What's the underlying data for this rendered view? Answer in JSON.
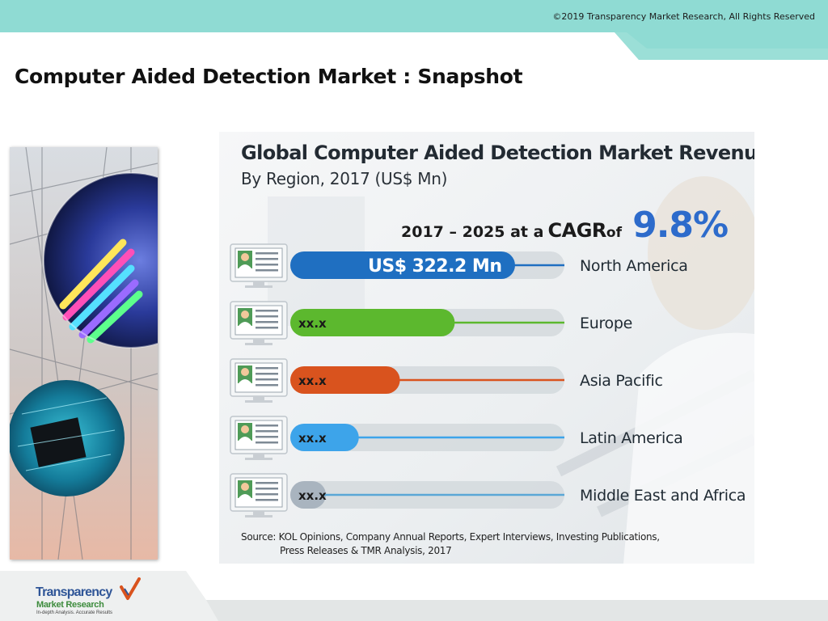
{
  "header": {
    "copyright": "©2019 Transparency Market Research, All Rights Reserved",
    "band_color": "#8fdbd3"
  },
  "page": {
    "title": "Computer Aided Detection Market : Snapshot"
  },
  "infographic": {
    "cagr_period": "2017 – 2025 at a",
    "cagr_word": "CAGR",
    "cagr_of": "of",
    "cagr_value": "9.8%",
    "source_line1": "Source: KOL Opinions, Company Annual Reports, Expert Interviews, Investing Publications,",
    "source_line2": "Press Releases & TMR Analysis, 2017",
    "icon": "doctor-monitor-icon"
  },
  "chart_data": {
    "type": "bar",
    "title": "Global Computer Aided Detection Market Revenue",
    "subtitle": "By Region, 2017 (US$ Mn)",
    "categories": [
      "North America",
      "Europe",
      "Asia Pacific",
      "Latin America",
      "Middle East and Africa"
    ],
    "values": [
      322.2,
      null,
      null,
      null,
      null
    ],
    "value_labels": [
      "US$ 322.2 Mn",
      "xx.x",
      "xx.x",
      "xx.x",
      "xx.x"
    ],
    "bar_fill_fractions": [
      0.82,
      0.6,
      0.4,
      0.25,
      0.13
    ],
    "colors": [
      "#1f6fc1",
      "#5cb82e",
      "#d9531e",
      "#3da4ea",
      "#a9b4bf"
    ],
    "line_colors": [
      "#1f6fc1",
      "#5cb82e",
      "#d9531e",
      "#3da4ea",
      "#5aa7d6"
    ],
    "legend": "none",
    "grid": false
  },
  "footer": {
    "logo_main": "Transparency",
    "logo_sub": "Market Research",
    "logo_tag": "In-depth Analysis. Accurate Results"
  }
}
